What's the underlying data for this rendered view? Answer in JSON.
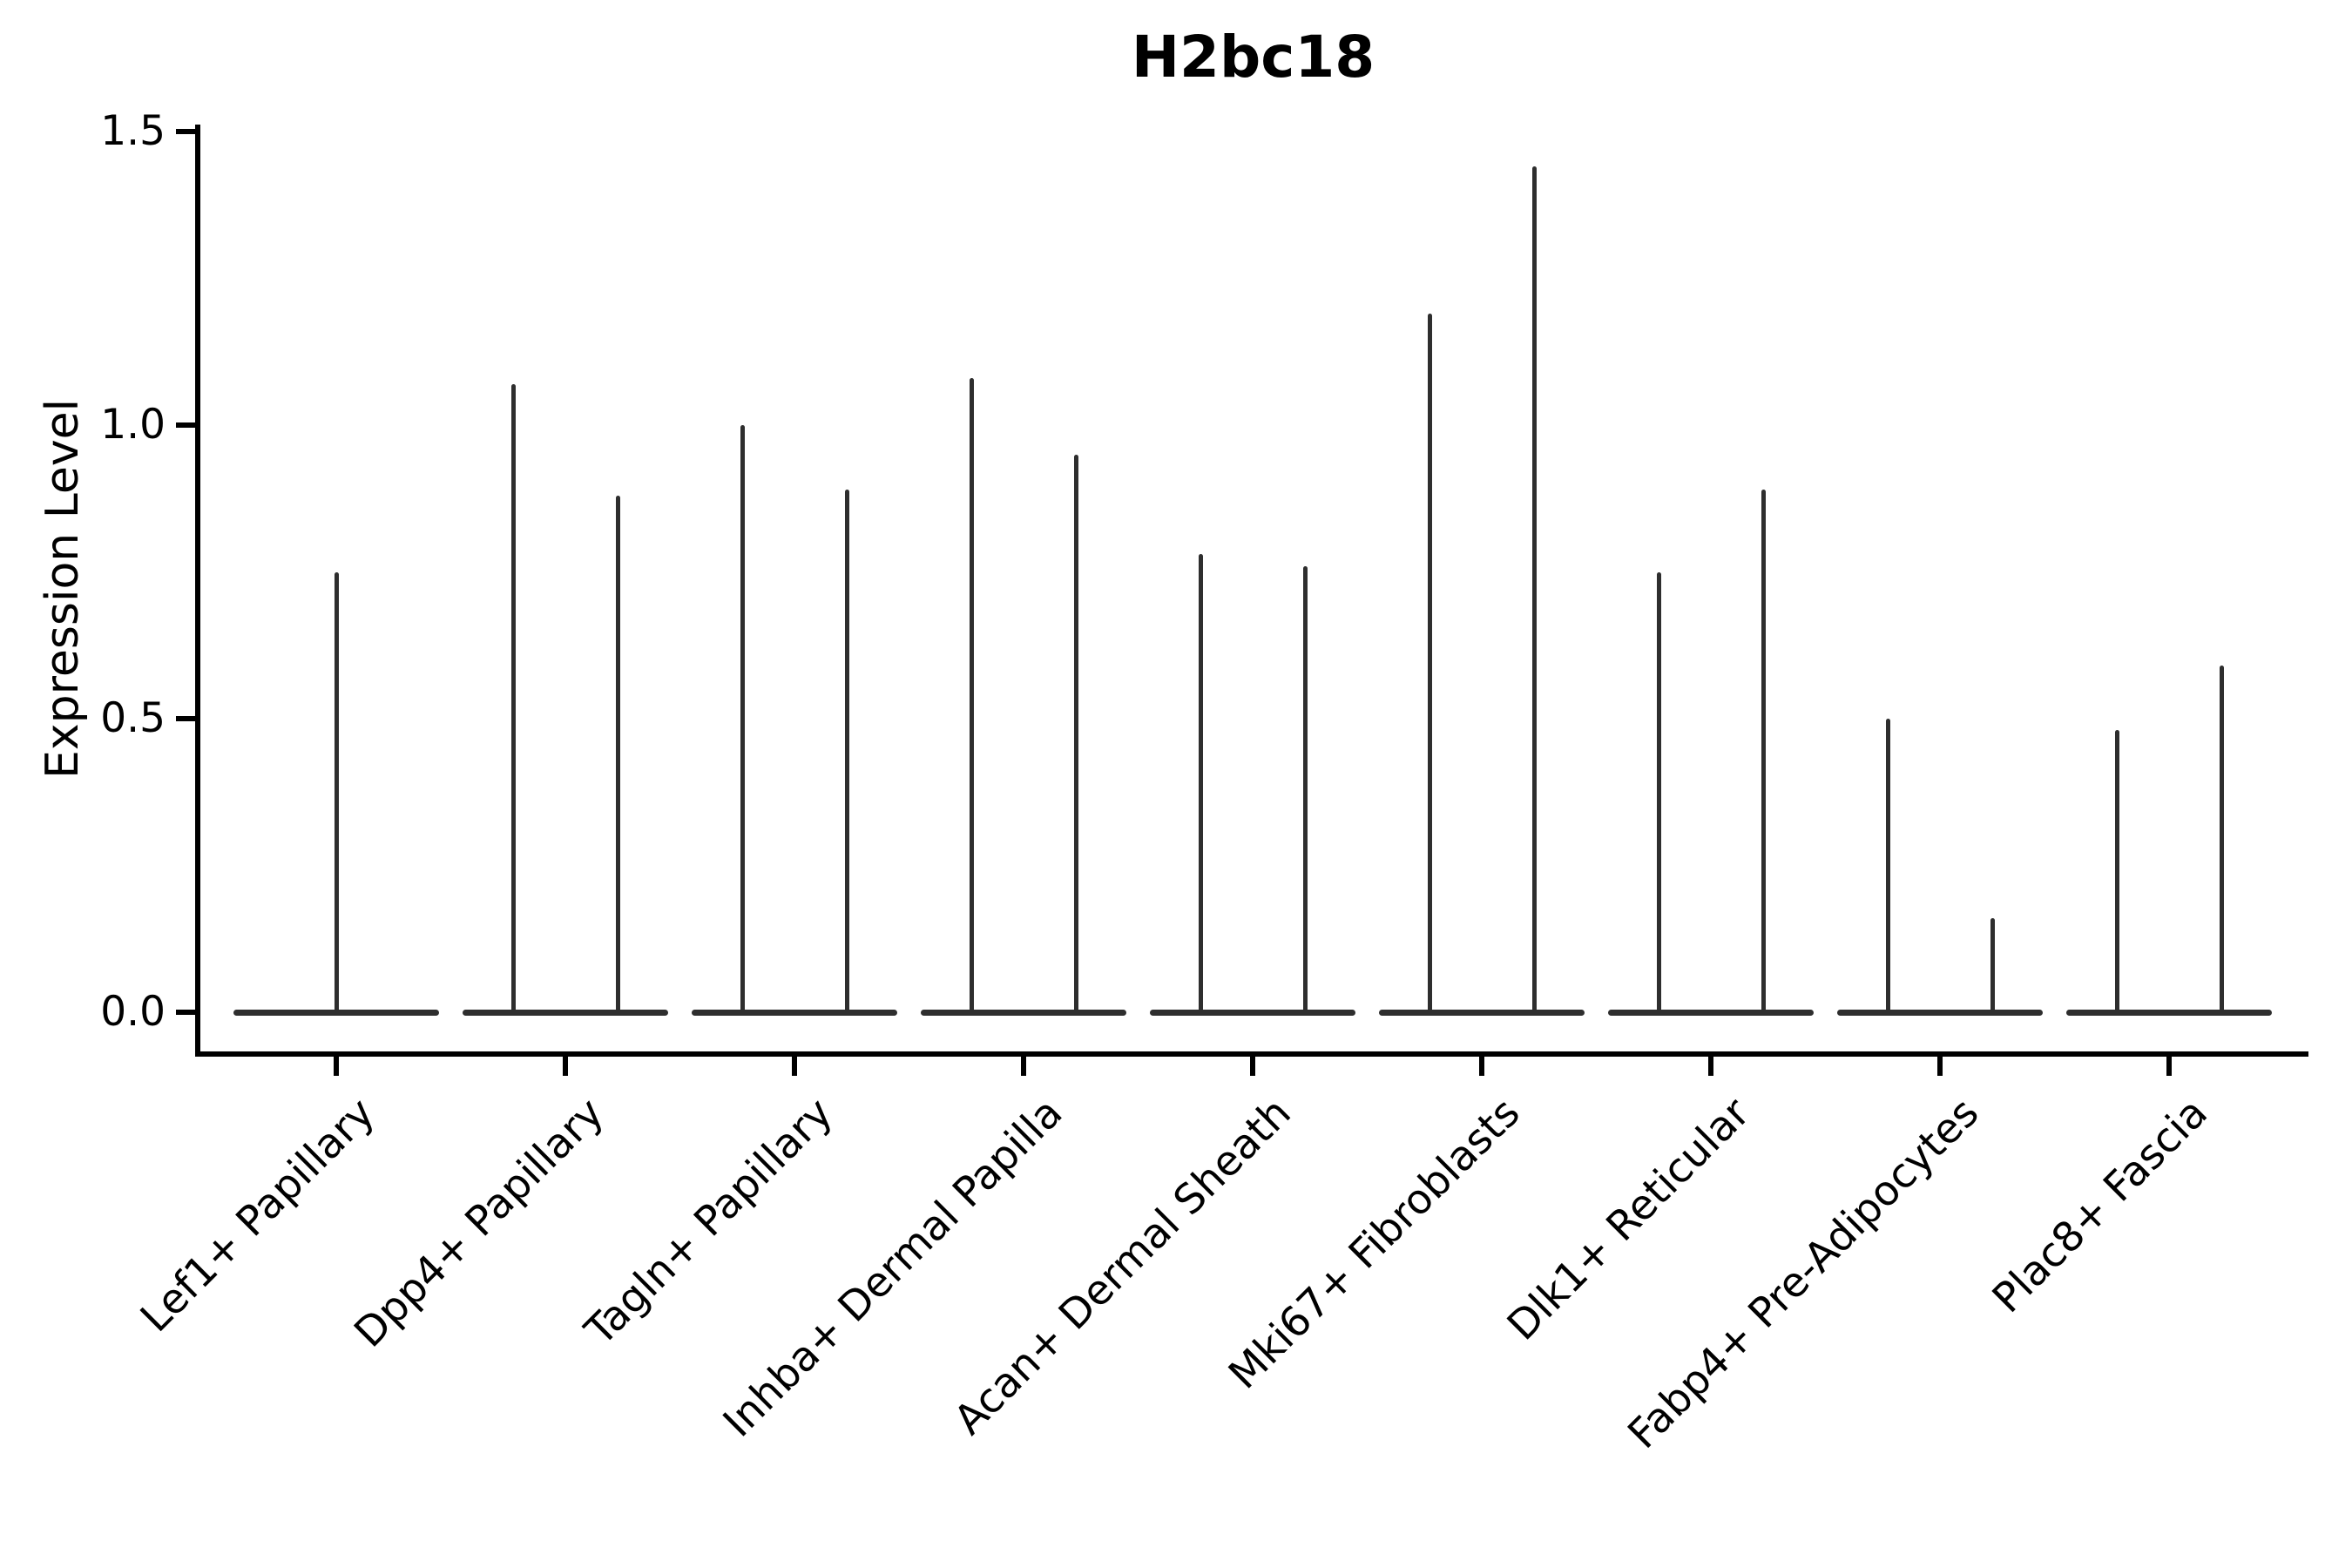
{
  "figure": {
    "title": "H2bc18",
    "ylabel": "Expression Level"
  },
  "chart_data": {
    "type": "violin",
    "title": "H2bc18",
    "xlabel": "",
    "ylabel": "Expression Level",
    "ylim": [
      -0.07,
      1.51
    ],
    "yticks": [
      "0.0",
      "0.5",
      "1.0",
      "1.5"
    ],
    "ytick_values": [
      0.0,
      0.5,
      1.0,
      1.5
    ],
    "grid": false,
    "legend": null,
    "background_color": "#ffffff",
    "violin_stroke_color": "#2e2e2e",
    "axis_color": "#000000",
    "categories": [
      "Lef1+ Papillary",
      "Dpp4+ Papillary",
      "Tagln+ Papillary",
      "Inhba+ Dermal Papilla",
      "Acan+ Dermal Sheath",
      "Mki67+ Fibroblasts",
      "Dlk1+ Reticular",
      "Fabp4+ Pre-Adipocytes",
      "Plac8+ Fascia"
    ],
    "series": [
      {
        "category": "Lef1+ Papillary",
        "violin_maxima": [
          0.75
        ]
      },
      {
        "category": "Dpp4+ Papillary",
        "violin_maxima": [
          1.07,
          0.88
        ]
      },
      {
        "category": "Tagln+ Papillary",
        "violin_maxima": [
          1.0,
          0.89
        ]
      },
      {
        "category": "Inhba+ Dermal Papilla",
        "violin_maxima": [
          1.08,
          0.95
        ]
      },
      {
        "category": "Acan+ Dermal Sheath",
        "violin_maxima": [
          0.78,
          0.76
        ]
      },
      {
        "category": "Mki67+ Fibroblasts",
        "violin_maxima": [
          1.19,
          1.44
        ]
      },
      {
        "category": "Dlk1+ Reticular",
        "violin_maxima": [
          0.75,
          0.89
        ]
      },
      {
        "category": "Fabp4+ Pre-Adipocytes",
        "violin_maxima": [
          0.5,
          0.16
        ]
      },
      {
        "category": "Plac8+ Fascia",
        "violin_maxima": [
          0.48,
          0.59
        ]
      }
    ],
    "violin_description": "Each violin's density is concentrated at expression 0 (flat wide base line at y=0) with a very thin spike rising to the violin's maximum value; categories with two violins are dodged pairs."
  }
}
